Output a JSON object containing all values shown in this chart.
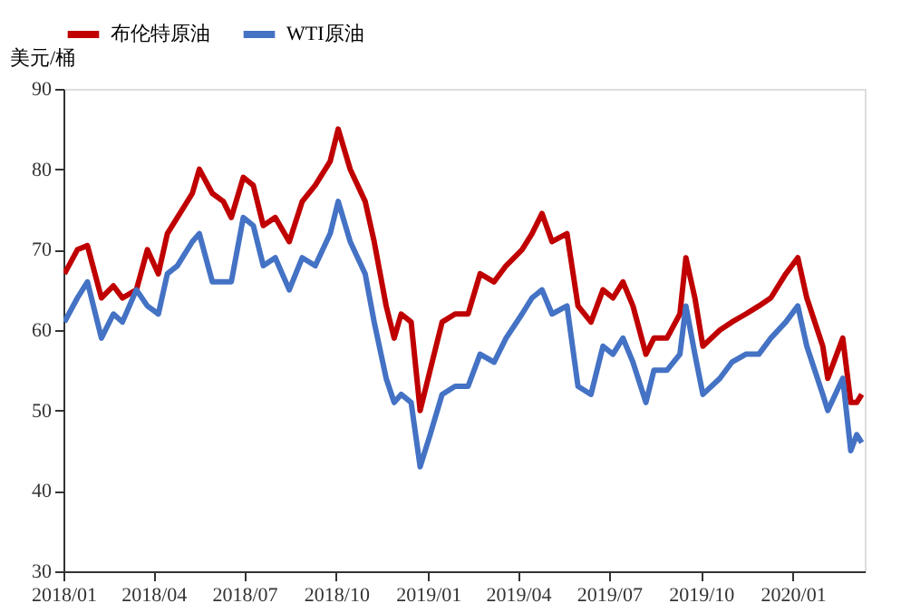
{
  "chart_data": {
    "type": "line",
    "ylabel": "美元/桶",
    "legend": "top",
    "grid": false,
    "line_style": "solid",
    "marker": "none",
    "x": [
      "2018-01-02",
      "2018-01-15",
      "2018-01-25",
      "2018-02-08",
      "2018-02-20",
      "2018-03-01",
      "2018-03-15",
      "2018-03-26",
      "2018-04-06",
      "2018-04-15",
      "2018-04-25",
      "2018-05-10",
      "2018-05-17",
      "2018-05-30",
      "2018-06-10",
      "2018-06-18",
      "2018-06-30",
      "2018-07-10",
      "2018-07-20",
      "2018-08-01",
      "2018-08-15",
      "2018-08-28",
      "2018-09-10",
      "2018-09-25",
      "2018-10-03",
      "2018-10-15",
      "2018-10-30",
      "2018-11-08",
      "2018-11-20",
      "2018-11-28",
      "2018-12-05",
      "2018-12-15",
      "2018-12-24",
      "2019-01-03",
      "2019-01-15",
      "2019-01-28",
      "2019-02-10",
      "2019-02-22",
      "2019-03-08",
      "2019-03-20",
      "2019-04-05",
      "2019-04-15",
      "2019-04-25",
      "2019-05-05",
      "2019-05-20",
      "2019-05-31",
      "2019-06-13",
      "2019-06-25",
      "2019-07-05",
      "2019-07-15",
      "2019-07-25",
      "2019-08-07",
      "2019-08-15",
      "2019-08-28",
      "2019-09-10",
      "2019-09-16",
      "2019-09-25",
      "2019-10-03",
      "2019-10-20",
      "2019-11-01",
      "2019-11-15",
      "2019-11-28",
      "2019-12-10",
      "2019-12-25",
      "2020-01-06",
      "2020-01-15",
      "2020-01-31",
      "2020-02-05",
      "2020-02-20",
      "2020-02-28",
      "2020-03-05",
      "2020-03-10"
    ],
    "series": [
      {
        "name": "布伦特原油",
        "color": "#c00000",
        "values": [
          67,
          70,
          70.5,
          64,
          65.5,
          64,
          65,
          70,
          67,
          72,
          74,
          77,
          80,
          77,
          76,
          74,
          79,
          78,
          73,
          74,
          71,
          76,
          78,
          81,
          85,
          80,
          76,
          71,
          63,
          59,
          62,
          61,
          50,
          55,
          61,
          62,
          62,
          67,
          66,
          68,
          70,
          72,
          74.5,
          71,
          72,
          63,
          61,
          65,
          64,
          66,
          63,
          57,
          59,
          59,
          62,
          69,
          64,
          58,
          60,
          61,
          62,
          63,
          64,
          67,
          69,
          64,
          58,
          54,
          59,
          51,
          51,
          52
        ]
      },
      {
        "name": "WTI原油",
        "color": "#4472c4",
        "values": [
          61,
          64,
          66,
          59,
          62,
          61,
          65,
          63,
          62,
          67,
          68,
          71,
          72,
          66,
          66,
          66,
          74,
          73,
          68,
          69,
          65,
          69,
          68,
          72,
          76,
          71,
          67,
          61,
          54,
          51,
          52,
          51,
          43,
          47,
          52,
          53,
          53,
          57,
          56,
          59,
          62,
          64,
          65,
          62,
          63,
          53,
          52,
          58,
          57,
          59,
          56,
          51,
          55,
          55,
          57,
          63,
          57,
          52,
          54,
          56,
          57,
          57,
          59,
          61,
          63,
          58,
          52,
          50,
          54,
          45,
          47,
          46
        ]
      }
    ],
    "xlim": [
      "2018-01-01",
      "2020-03-13"
    ],
    "xticks": [
      {
        "value": "2018-01-01",
        "label": "2018/01"
      },
      {
        "value": "2018-04-01",
        "label": "2018/04"
      },
      {
        "value": "2018-07-01",
        "label": "2018/07"
      },
      {
        "value": "2018-10-01",
        "label": "2018/10"
      },
      {
        "value": "2019-01-01",
        "label": "2019/01"
      },
      {
        "value": "2019-04-01",
        "label": "2019/04"
      },
      {
        "value": "2019-07-01",
        "label": "2019/07"
      },
      {
        "value": "2019-10-01",
        "label": "2019/10"
      },
      {
        "value": "2020-01-01",
        "label": "2020/01"
      }
    ],
    "ylim": [
      30,
      90
    ],
    "yticks": [
      30,
      40,
      50,
      60,
      70,
      80,
      90
    ]
  }
}
